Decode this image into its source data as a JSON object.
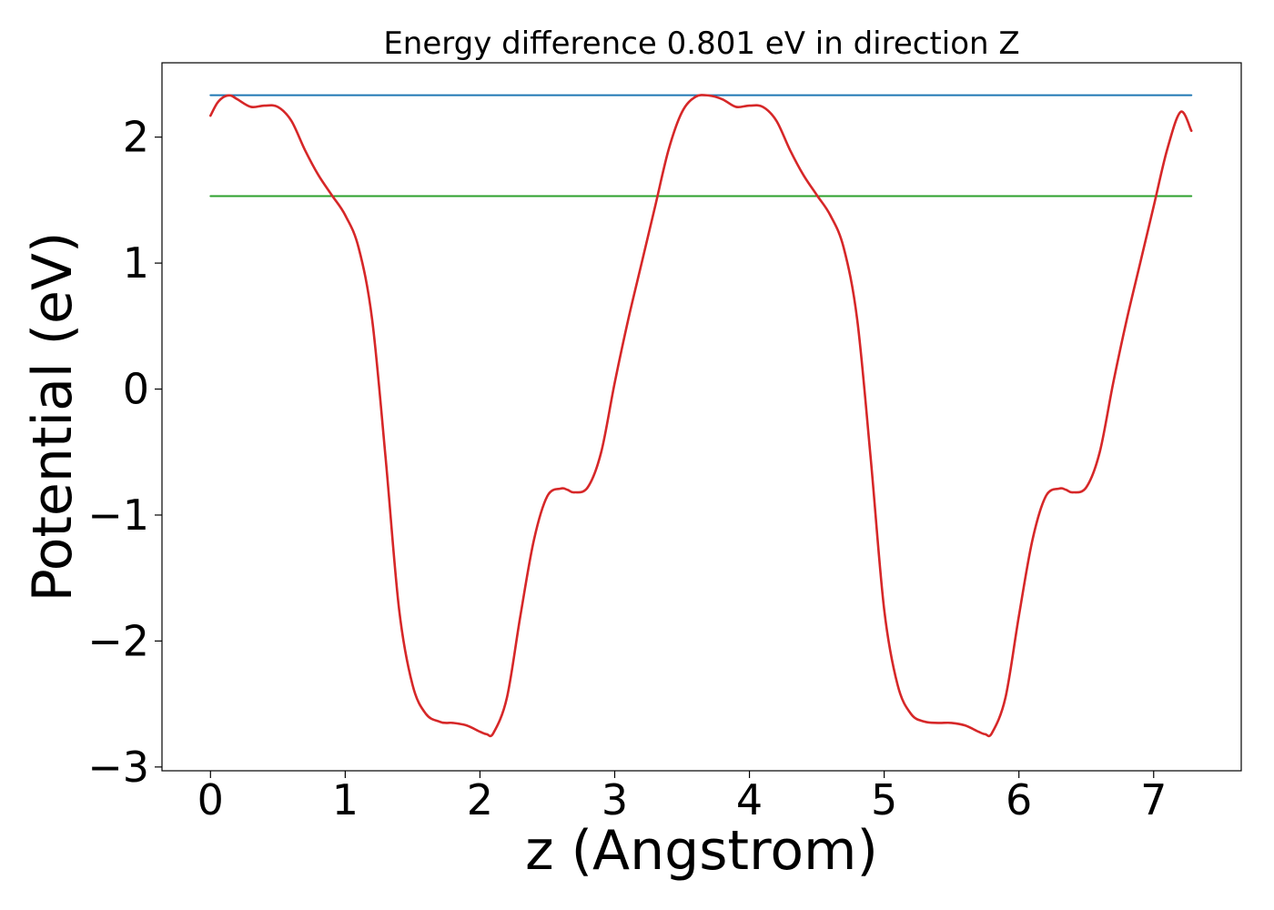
{
  "chart_data": {
    "type": "line",
    "title": "Energy difference 0.801 eV in direction Z",
    "xlabel": "z (Angstrom)",
    "ylabel": "Potential (eV)",
    "xlim": [
      -0.36,
      7.65
    ],
    "ylim": [
      -3.03,
      2.59
    ],
    "grid": false,
    "legend": "none",
    "x_ticks": [
      {
        "value": 0,
        "label": "0"
      },
      {
        "value": 1,
        "label": "1"
      },
      {
        "value": 2,
        "label": "2"
      },
      {
        "value": 3,
        "label": "3"
      },
      {
        "value": 4,
        "label": "4"
      },
      {
        "value": 5,
        "label": "5"
      },
      {
        "value": 6,
        "label": "6"
      },
      {
        "value": 7,
        "label": "7"
      }
    ],
    "y_ticks": [
      {
        "value": -3,
        "label": "−3"
      },
      {
        "value": -2,
        "label": "−2"
      },
      {
        "value": -1,
        "label": "−1"
      },
      {
        "value": 0,
        "label": "0"
      },
      {
        "value": 1,
        "label": "1"
      },
      {
        "value": 2,
        "label": "2"
      }
    ],
    "series": [
      {
        "color": "#d62728",
        "kind": "curve",
        "x": [
          0,
          0.05,
          0.1,
          0.15,
          0.2,
          0.3,
          0.4,
          0.5,
          0.6,
          0.7,
          0.8,
          0.9,
          1.0,
          1.1,
          1.2,
          1.3,
          1.4,
          1.5,
          1.6,
          1.7,
          1.75,
          1.8,
          1.9,
          2.0,
          2.05,
          2.1,
          2.2,
          2.3,
          2.4,
          2.5,
          2.6,
          2.65,
          2.7,
          2.8,
          2.9,
          3.0,
          3.1,
          3.2,
          3.3,
          3.4,
          3.5,
          3.6,
          3.7,
          3.8,
          3.9,
          4.0,
          4.1,
          4.2,
          4.3,
          4.4,
          4.5,
          4.6,
          4.7,
          4.8,
          4.9,
          5.0,
          5.1,
          5.2,
          5.3,
          5.4,
          5.5,
          5.6,
          5.7,
          5.75,
          5.8,
          5.9,
          6.0,
          6.1,
          6.2,
          6.3,
          6.35,
          6.4,
          6.5,
          6.6,
          6.7,
          6.8,
          6.9,
          7.0,
          7.1,
          7.2,
          7.28
        ],
        "y": [
          2.17,
          2.27,
          2.32,
          2.33,
          2.3,
          2.24,
          2.25,
          2.24,
          2.13,
          1.9,
          1.7,
          1.54,
          1.38,
          1.12,
          0.55,
          -0.55,
          -1.75,
          -2.35,
          -2.58,
          -2.64,
          -2.65,
          -2.65,
          -2.67,
          -2.72,
          -2.74,
          -2.73,
          -2.45,
          -1.8,
          -1.2,
          -0.85,
          -0.79,
          -0.8,
          -0.82,
          -0.78,
          -0.5,
          0.05,
          0.55,
          1.0,
          1.45,
          1.9,
          2.2,
          2.32,
          2.33,
          2.3,
          2.24,
          2.25,
          2.24,
          2.13,
          1.9,
          1.7,
          1.54,
          1.38,
          1.12,
          0.55,
          -0.55,
          -1.75,
          -2.35,
          -2.58,
          -2.64,
          -2.65,
          -2.65,
          -2.67,
          -2.72,
          -2.74,
          -2.73,
          -2.45,
          -1.8,
          -1.2,
          -0.85,
          -0.79,
          -0.8,
          -0.82,
          -0.78,
          -0.5,
          0.05,
          0.55,
          1.0,
          1.45,
          1.9,
          2.2,
          2.05
        ]
      },
      {
        "color": "#1f77b4",
        "kind": "hline",
        "x": [
          0,
          7.28
        ],
        "y": [
          2.333,
          2.333
        ]
      },
      {
        "color": "#2ca02c",
        "kind": "hline",
        "x": [
          0,
          7.28
        ],
        "y": [
          1.532,
          1.532
        ]
      }
    ]
  }
}
